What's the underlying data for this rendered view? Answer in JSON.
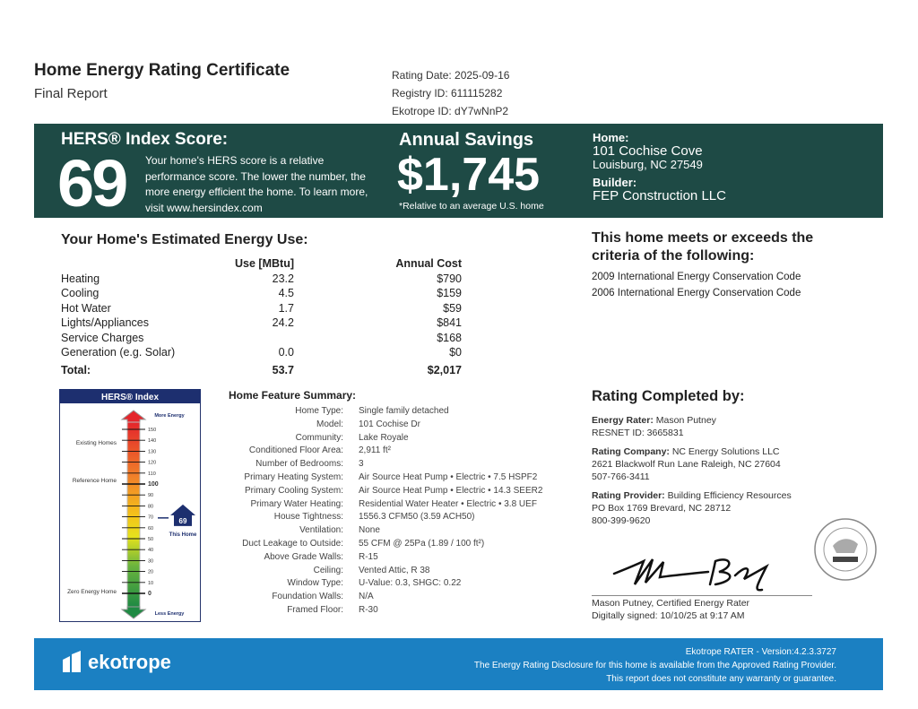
{
  "header": {
    "title": "Home Energy Rating Certificate",
    "subtitle": "Final Report",
    "rating_date": "Rating Date: 2025-09-16",
    "registry_id": "Registry ID: 611115282",
    "ekotrope_id": "Ekotrope ID: dY7wNnP2"
  },
  "banner": {
    "hers_heading": "HERS® Index Score:",
    "hers_score": "69",
    "hers_description": "Your home's HERS score is a relative performance score. The lower the number, the more energy efficient the home. To learn more, visit www.hersindex.com",
    "savings_heading": "Annual Savings",
    "savings_amount": "$1,745",
    "savings_note": "*Relative to an average U.S. home",
    "home_label": "Home:",
    "home_address1": "101 Cochise Cove",
    "home_address2": "Louisburg, NC 27549",
    "builder_label": "Builder:",
    "builder_name": "FEP Construction LLC",
    "color": "#1e4a45"
  },
  "energy_use": {
    "heading": "Your Home's Estimated Energy Use:",
    "columns": [
      "",
      "Use [MBtu]",
      "Annual Cost"
    ],
    "rows": [
      [
        "Heating",
        "23.2",
        "$790"
      ],
      [
        "Cooling",
        "4.5",
        "$159"
      ],
      [
        "Hot Water",
        "1.7",
        "$59"
      ],
      [
        "Lights/Appliances",
        "24.2",
        "$841"
      ],
      [
        "Service Charges",
        "",
        "$168"
      ],
      [
        "Generation (e.g. Solar)",
        "0.0",
        "$0"
      ]
    ],
    "total": [
      "Total:",
      "53.7",
      "$2,017"
    ]
  },
  "criteria": {
    "heading": "This home meets or exceeds the criteria of the following:",
    "items": [
      "2009 International Energy Conservation Code",
      "2006 International Energy Conservation Code"
    ]
  },
  "hers_index": {
    "title": "HERS® Index",
    "more": "More Energy",
    "less": "Less Energy",
    "ticks": [
      "150",
      "140",
      "130",
      "120",
      "110",
      "100",
      "90",
      "80",
      "70",
      "60",
      "50",
      "40",
      "30",
      "20",
      "10",
      "0"
    ],
    "existing": "Existing Homes",
    "reference": "Reference Home",
    "zero": "Zero Energy Home",
    "this_home": "This Home",
    "score": 69
  },
  "features": {
    "heading": "Home Feature Summary:",
    "rows": [
      [
        "Home Type:",
        "Single family detached"
      ],
      [
        "Model:",
        "101 Cochise Dr"
      ],
      [
        "Community:",
        "Lake Royale"
      ],
      [
        "Conditioned Floor Area:",
        "2,911 ft²"
      ],
      [
        "Number of Bedrooms:",
        "3"
      ],
      [
        "Primary Heating System:",
        "Air Source Heat Pump • Electric • 7.5 HSPF2"
      ],
      [
        "Primary Cooling System:",
        "Air Source Heat Pump • Electric • 14.3 SEER2"
      ],
      [
        "Primary Water Heating:",
        "Residential Water Heater • Electric • 3.8 UEF"
      ],
      [
        "House Tightness:",
        "1556.3 CFM50 (3.59 ACH50)"
      ],
      [
        "Ventilation:",
        "None"
      ],
      [
        "Duct Leakage to Outside:",
        "55 CFM @ 25Pa (1.89 / 100 ft²)"
      ],
      [
        "Above Grade Walls:",
        "R-15"
      ],
      [
        "Ceiling:",
        "Vented Attic, R 38"
      ],
      [
        "Window Type:",
        "U-Value: 0.3, SHGC: 0.22"
      ],
      [
        "Foundation Walls:",
        "N/A"
      ],
      [
        "Framed Floor:",
        "R-30"
      ]
    ]
  },
  "rating": {
    "heading": "Rating Completed by:",
    "rater_label": "Energy Rater:",
    "rater": "Mason Putney",
    "resnet": "RESNET ID: 3665831",
    "company_label": "Rating Company:",
    "company": "NC Energy Solutions LLC",
    "company_addr": "2621 Blackwolf Run Lane Raleigh, NC 27604",
    "company_phone": "507-766-3411",
    "provider_label": "Rating Provider:",
    "provider": "Building Efficiency Resources",
    "provider_addr": "PO Box 1769 Brevard, NC 28712",
    "provider_phone": "800-399-9620",
    "signer": "Mason Putney, Certified Energy Rater",
    "signed": "Digitally signed: 10/10/25 at 9:17 AM"
  },
  "footer": {
    "logo": "ekotrope",
    "version": "Ekotrope RATER - Version:4.2.3.3727",
    "disclosure": "The Energy Rating Disclosure for this home is available from the Approved Rating Provider.",
    "warranty": "This report does not constitute any warranty or guarantee.",
    "color": "#1b80c2"
  }
}
